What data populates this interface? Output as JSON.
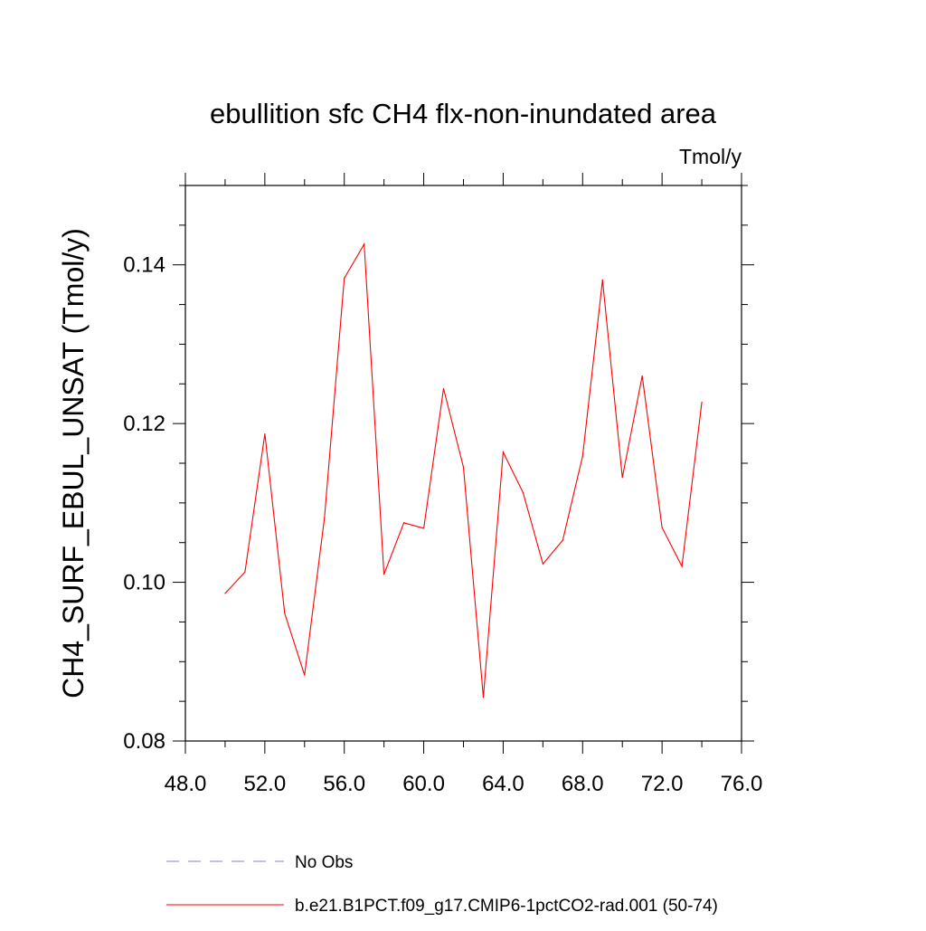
{
  "chart_data": {
    "type": "line",
    "title": "ebullition sfc CH4 flx-non-inundated area",
    "units_label": "Tmol/y",
    "xlabel": "",
    "ylabel": "CH4_SURF_EBUL_UNSAT  (Tmol/y)",
    "xlim": [
      48,
      76
    ],
    "ylim": [
      0.08,
      0.15
    ],
    "x_ticks": [
      48,
      52,
      56,
      60,
      64,
      68,
      72,
      76
    ],
    "x_tick_labels": [
      "48.0",
      "52.0",
      "56.0",
      "60.0",
      "64.0",
      "68.0",
      "72.0",
      "76.0"
    ],
    "y_ticks": [
      0.08,
      0.1,
      0.12,
      0.14
    ],
    "y_tick_labels": [
      "0.08",
      "0.10",
      "0.12",
      "0.14"
    ],
    "grid": false,
    "legend_position": "bottom",
    "series": [
      {
        "name": "b.e21.B1PCT.f09_g17.CMIP6-1pctCO2-rad.001 (50-74)",
        "color": "#ff0000",
        "style": "solid",
        "x": [
          50,
          51,
          52,
          53,
          54,
          55,
          56,
          57,
          58,
          59,
          60,
          61,
          62,
          63,
          64,
          65,
          66,
          67,
          68,
          69,
          70,
          71,
          72,
          73,
          74
        ],
        "y": [
          0.0986,
          0.1013,
          0.1187,
          0.0961,
          0.0883,
          0.1081,
          0.1383,
          0.1426,
          0.101,
          0.1075,
          0.1068,
          0.1244,
          0.1145,
          0.0855,
          0.1164,
          0.1113,
          0.1023,
          0.1053,
          0.1159,
          0.1381,
          0.1132,
          0.126,
          0.1069,
          0.102,
          0.1227
        ]
      }
    ],
    "legend": [
      {
        "label": "No Obs",
        "color": "#8080c0",
        "style": "dashed"
      },
      {
        "label": "b.e21.B1PCT.f09_g17.CMIP6-1pctCO2-rad.001 (50-74)",
        "color": "#ff0000",
        "style": "solid"
      }
    ]
  }
}
